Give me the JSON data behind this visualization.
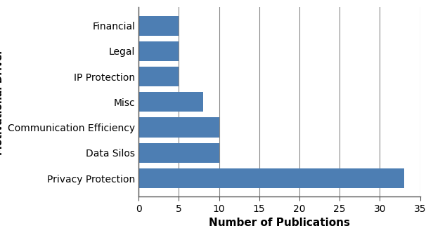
{
  "categories": [
    "Privacy Protection",
    "Data Silos",
    "Communication Efficiency",
    "Misc",
    "IP Protection",
    "Legal",
    "Financial"
  ],
  "values": [
    33,
    10,
    10,
    8,
    5,
    5,
    5
  ],
  "bar_color": "#4d7eb3",
  "xlabel": "Number of Publications",
  "xlim": [
    0,
    35
  ],
  "xticks": [
    0,
    5,
    10,
    15,
    20,
    25,
    30,
    35
  ],
  "grid_color": "#888888",
  "background_color": "#ffffff",
  "bar_height": 0.78,
  "ylabel_fontsize": 10,
  "xlabel_fontsize": 11,
  "ytick_fontsize": 10,
  "xtick_fontsize": 10
}
